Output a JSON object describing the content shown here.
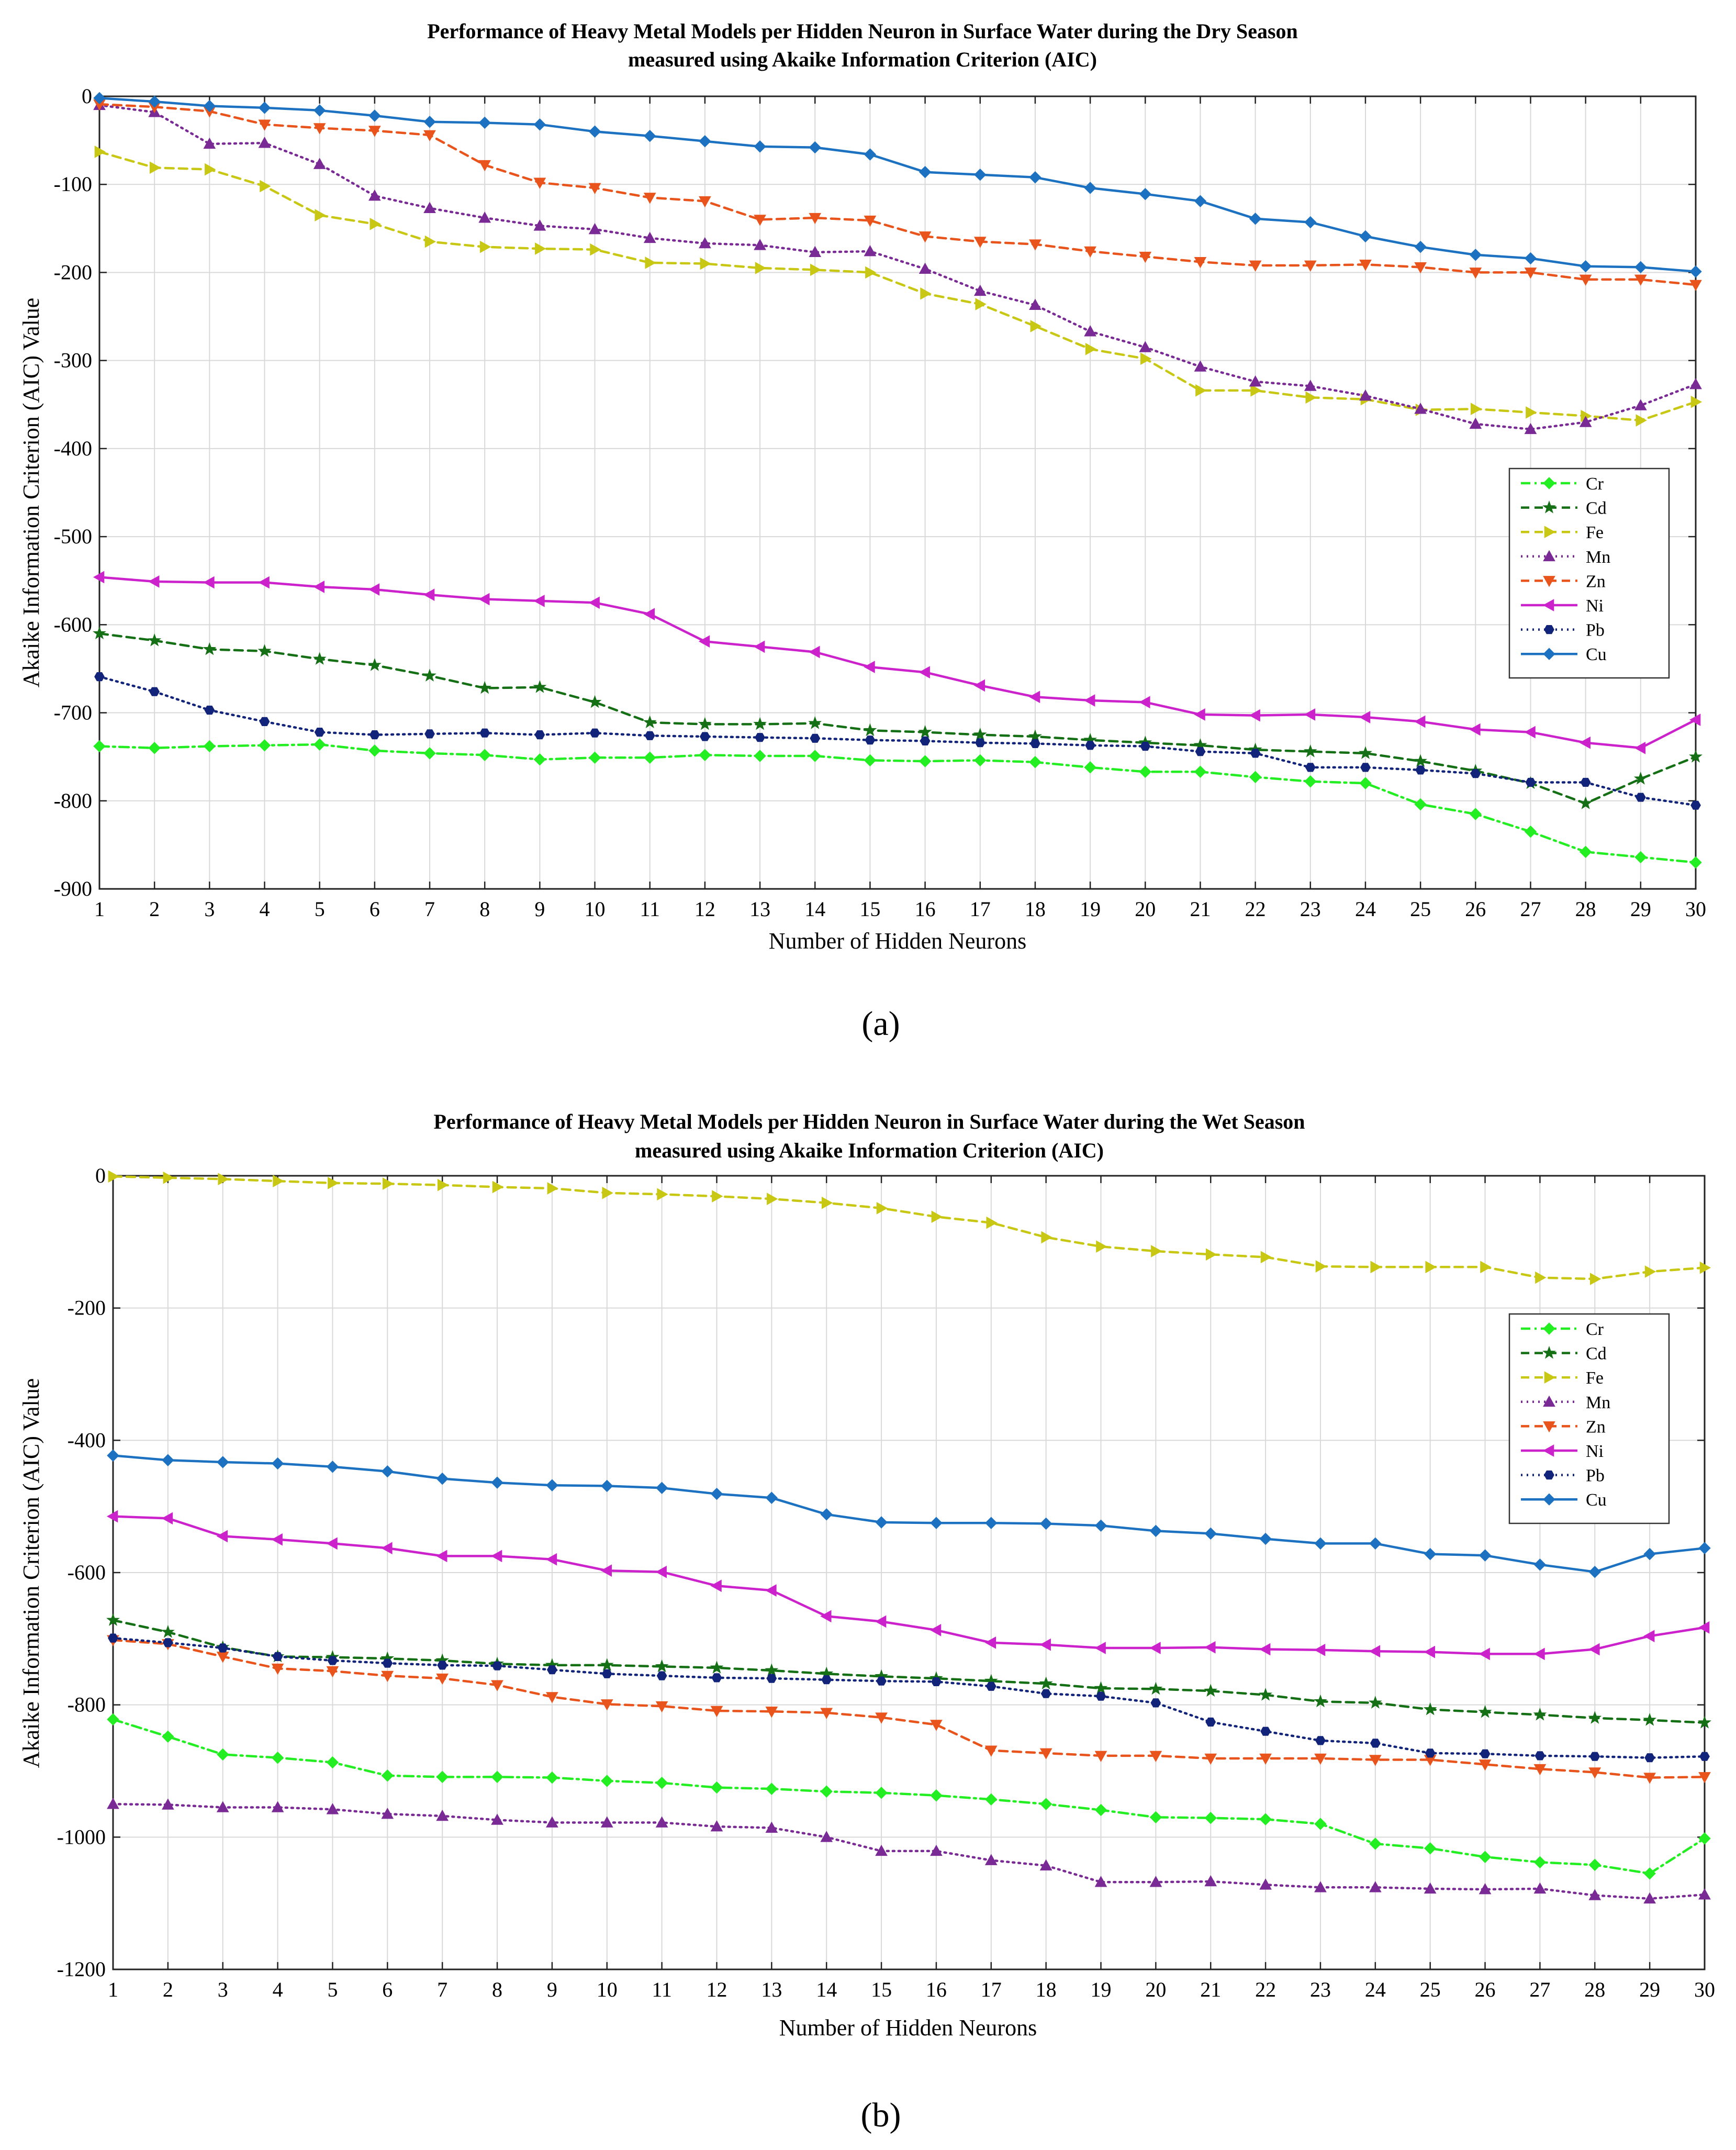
{
  "figure": {
    "panel_labels": [
      "(a)",
      "(b)"
    ],
    "legend_labels": [
      "Cr",
      "Cd",
      "Fe",
      "Mn",
      "Zn",
      "Ni",
      "Pb",
      "Cu"
    ]
  },
  "chart_data": [
    {
      "type": "line",
      "title_line1": "Performance of Heavy Metal Models per Hidden Neuron in Surface Water during the Dry Season",
      "title_line2": "measured using Akaike Information Criterion (AIC)",
      "xlabel": "Number of Hidden Neurons",
      "ylabel": "Akaike Information Criterion (AIC) Value",
      "xlim": [
        1,
        30
      ],
      "ylim": [
        -900,
        0
      ],
      "yticks": [
        0,
        -100,
        -200,
        -300,
        -400,
        -500,
        -600,
        -700,
        -800,
        -900
      ],
      "grid": true,
      "legend_position": "right",
      "x": [
        1,
        2,
        3,
        4,
        5,
        6,
        7,
        8,
        9,
        10,
        11,
        12,
        13,
        14,
        15,
        16,
        17,
        18,
        19,
        20,
        21,
        22,
        23,
        24,
        25,
        26,
        27,
        28,
        29,
        30
      ],
      "series": [
        {
          "name": "Cr",
          "color": "#22ee22",
          "dash": "dashdot",
          "marker": "diamond",
          "values": [
            -738,
            -740,
            -738,
            -737,
            -736,
            -743,
            -746,
            -748,
            -753,
            -751,
            -751,
            -748,
            -749,
            -749,
            -754,
            -755,
            -754,
            -756,
            -762,
            -767,
            -767,
            -773,
            -778,
            -780,
            -804,
            -815,
            -835,
            -858,
            -864,
            -870
          ]
        },
        {
          "name": "Cd",
          "color": "#157015",
          "dash": "dashed",
          "marker": "star",
          "values": [
            -610,
            -618,
            -628,
            -630,
            -639,
            -646,
            -658,
            -672,
            -671,
            -688,
            -711,
            -713,
            -713,
            -712,
            -720,
            -722,
            -725,
            -727,
            -731,
            -734,
            -737,
            -742,
            -744,
            -746,
            -755,
            -766,
            -780,
            -803,
            -775,
            -750
          ]
        },
        {
          "name": "Fe",
          "color": "#c8c814",
          "dash": "dashed",
          "marker": "triangle-right",
          "values": [
            -63,
            -81,
            -83,
            -102,
            -135,
            -145,
            -165,
            -171,
            -173,
            -174,
            -189,
            -190,
            -195,
            -197,
            -200,
            -224,
            -236,
            -261,
            -287,
            -298,
            -334,
            -334,
            -342,
            -344,
            -356,
            -355,
            -359,
            -363,
            -368,
            -347
          ]
        },
        {
          "name": "Mn",
          "color": "#7a2a95",
          "dash": "dotted",
          "marker": "triangle-up",
          "values": [
            -10,
            -18,
            -54,
            -53,
            -77,
            -113,
            -127,
            -138,
            -147,
            -151,
            -161,
            -167,
            -169,
            -177,
            -176,
            -196,
            -221,
            -237,
            -267,
            -285,
            -307,
            -324,
            -329,
            -340,
            -355,
            -372,
            -378,
            -370,
            -351,
            -327
          ]
        },
        {
          "name": "Zn",
          "color": "#e8541c",
          "dash": "dashed",
          "marker": "triangle-down",
          "values": [
            -9,
            -12,
            -17,
            -32,
            -36,
            -39,
            -44,
            -78,
            -98,
            -104,
            -115,
            -119,
            -140,
            -138,
            -141,
            -159,
            -165,
            -168,
            -176,
            -182,
            -188,
            -192,
            -192,
            -191,
            -194,
            -200,
            -200,
            -208,
            -208,
            -214
          ]
        },
        {
          "name": "Ni",
          "color": "#cc22cc",
          "dash": "solid",
          "marker": "triangle-left",
          "values": [
            -546,
            -551,
            -552,
            -552,
            -557,
            -560,
            -566,
            -571,
            -573,
            -575,
            -588,
            -619,
            -625,
            -631,
            -648,
            -654,
            -669,
            -682,
            -686,
            -688,
            -702,
            -703,
            -702,
            -705,
            -710,
            -719,
            -722,
            -734,
            -740,
            -708
          ]
        },
        {
          "name": "Pb",
          "color": "#12247a",
          "dash": "dotted",
          "marker": "hexagon",
          "values": [
            -659,
            -676,
            -697,
            -710,
            -722,
            -725,
            -724,
            -723,
            -725,
            -723,
            -726,
            -727,
            -728,
            -729,
            -731,
            -732,
            -734,
            -735,
            -737,
            -738,
            -744,
            -746,
            -762,
            -762,
            -765,
            -769,
            -779,
            -779,
            -796,
            -805
          ]
        },
        {
          "name": "Cu",
          "color": "#1c72c0",
          "dash": "solid",
          "marker": "diamond",
          "values": [
            -2,
            -6,
            -11,
            -13,
            -16,
            -22,
            -29,
            -30,
            -32,
            -40,
            -45,
            -51,
            -57,
            -58,
            -66,
            -86,
            -89,
            -92,
            -104,
            -111,
            -119,
            -139,
            -143,
            -159,
            -171,
            -180,
            -184,
            -193,
            -194,
            -199
          ]
        }
      ]
    },
    {
      "type": "line",
      "title_line1": "Performance of Heavy Metal Models per Hidden Neuron in Surface Water during the Wet Season",
      "title_line2": "measured using Akaike Information Criterion (AIC)",
      "xlabel": "Number of Hidden Neurons",
      "ylabel": "Akaike Information Criterion (AIC) Value",
      "xlim": [
        1,
        30
      ],
      "ylim": [
        -1200,
        0
      ],
      "yticks": [
        0,
        -200,
        -400,
        -600,
        -800,
        -1000,
        -1200
      ],
      "grid": true,
      "legend_position": "top-right",
      "x": [
        1,
        2,
        3,
        4,
        5,
        6,
        7,
        8,
        9,
        10,
        11,
        12,
        13,
        14,
        15,
        16,
        17,
        18,
        19,
        20,
        21,
        22,
        23,
        24,
        25,
        26,
        27,
        28,
        29,
        30
      ],
      "series": [
        {
          "name": "Cr",
          "color": "#22ee22",
          "dash": "dashdot",
          "marker": "diamond",
          "values": [
            -822,
            -848,
            -875,
            -880,
            -887,
            -907,
            -909,
            -909,
            -910,
            -915,
            -918,
            -925,
            -927,
            -931,
            -933,
            -937,
            -943,
            -950,
            -959,
            -970,
            -971,
            -973,
            -980,
            -1010,
            -1017,
            -1030,
            -1038,
            -1042,
            -1055,
            -1002
          ]
        },
        {
          "name": "Cd",
          "color": "#157015",
          "dash": "dashed",
          "marker": "star",
          "values": [
            -672,
            -690,
            -713,
            -727,
            -728,
            -730,
            -733,
            -738,
            -740,
            -740,
            -742,
            -744,
            -748,
            -753,
            -757,
            -760,
            -764,
            -768,
            -775,
            -776,
            -779,
            -785,
            -795,
            -797,
            -807,
            -811,
            -815,
            -820,
            -823,
            -827
          ]
        },
        {
          "name": "Fe",
          "color": "#c8c814",
          "dash": "dashed",
          "marker": "triangle-right",
          "values": [
            -1,
            -3,
            -5,
            -8,
            -11,
            -12,
            -14,
            -17,
            -19,
            -26,
            -28,
            -31,
            -35,
            -41,
            -49,
            -62,
            -71,
            -93,
            -107,
            -114,
            -119,
            -123,
            -137,
            -138,
            -138,
            -138,
            -154,
            -156,
            -145,
            -139
          ]
        },
        {
          "name": "Mn",
          "color": "#7a2a95",
          "dash": "dotted",
          "marker": "triangle-up",
          "values": [
            -950,
            -951,
            -955,
            -955,
            -958,
            -965,
            -968,
            -974,
            -978,
            -978,
            -978,
            -984,
            -986,
            -1000,
            -1021,
            -1021,
            -1035,
            -1043,
            -1068,
            -1068,
            -1067,
            -1072,
            -1076,
            -1076,
            -1078,
            -1079,
            -1078,
            -1088,
            -1093,
            -1087
          ]
        },
        {
          "name": "Zn",
          "color": "#e8541c",
          "dash": "dashed",
          "marker": "triangle-down",
          "values": [
            -702,
            -708,
            -727,
            -745,
            -749,
            -756,
            -760,
            -770,
            -788,
            -799,
            -802,
            -809,
            -810,
            -812,
            -819,
            -830,
            -869,
            -873,
            -877,
            -877,
            -881,
            -881,
            -881,
            -883,
            -883,
            -890,
            -897,
            -902,
            -910,
            -909
          ]
        },
        {
          "name": "Ni",
          "color": "#cc22cc",
          "dash": "solid",
          "marker": "triangle-left",
          "values": [
            -515,
            -518,
            -545,
            -550,
            -556,
            -563,
            -575,
            -575,
            -580,
            -597,
            -599,
            -620,
            -627,
            -666,
            -674,
            -687,
            -706,
            -709,
            -714,
            -714,
            -713,
            -716,
            -717,
            -719,
            -720,
            -723,
            -723,
            -716,
            -696,
            -683
          ]
        },
        {
          "name": "Pb",
          "color": "#12247a",
          "dash": "dotted",
          "marker": "hexagon",
          "values": [
            -699,
            -706,
            -714,
            -727,
            -733,
            -737,
            -740,
            -741,
            -747,
            -753,
            -756,
            -759,
            -760,
            -762,
            -764,
            -765,
            -772,
            -783,
            -787,
            -797,
            -826,
            -840,
            -854,
            -858,
            -873,
            -874,
            -877,
            -878,
            -880,
            -878
          ]
        },
        {
          "name": "Cu",
          "color": "#1c72c0",
          "dash": "solid",
          "marker": "diamond",
          "values": [
            -423,
            -430,
            -433,
            -435,
            -440,
            -447,
            -458,
            -464,
            -468,
            -469,
            -472,
            -481,
            -487,
            -512,
            -524,
            -525,
            -525,
            -526,
            -529,
            -537,
            -541,
            -549,
            -556,
            -556,
            -572,
            -574,
            -588,
            -599,
            -572,
            -563
          ]
        }
      ]
    }
  ]
}
